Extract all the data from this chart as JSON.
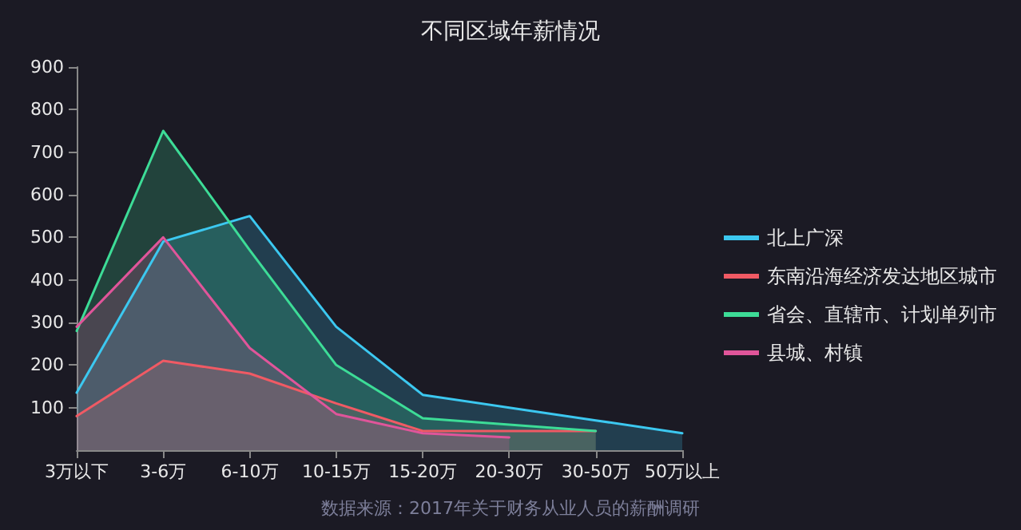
{
  "chart_data": {
    "type": "area",
    "title": "不同区域年薪情况",
    "annotations": [
      "数据来源：2017年关于财务从业人员的薪酬调研"
    ],
    "categories": [
      "3万以下",
      "3-6万",
      "6-10万",
      "10-15万",
      "15-20万",
      "20-30万",
      "30-50万",
      "50万以上"
    ],
    "series": [
      {
        "name": "北上广深",
        "color": "#3cc8f0",
        "values": [
          135,
          490,
          550,
          290,
          130,
          100,
          70,
          40
        ]
      },
      {
        "name": "东南沿海经济发达地区城市",
        "color": "#f05a64",
        "values": [
          80,
          210,
          180,
          110,
          45,
          45,
          45,
          null
        ]
      },
      {
        "name": "省会、直辖市、计划单列市",
        "color": "#3ddc97",
        "values": [
          280,
          750,
          470,
          200,
          75,
          60,
          45,
          null
        ]
      },
      {
        "name": "县城、村镇",
        "color": "#e0559a",
        "values": [
          290,
          500,
          240,
          85,
          40,
          30,
          null,
          null
        ]
      }
    ],
    "ylim": [
      0,
      900
    ],
    "yticks": [
      100,
      200,
      300,
      400,
      500,
      600,
      700,
      800,
      900
    ],
    "grid": false,
    "legend": "right",
    "marker": "none",
    "line_style": "solid"
  }
}
